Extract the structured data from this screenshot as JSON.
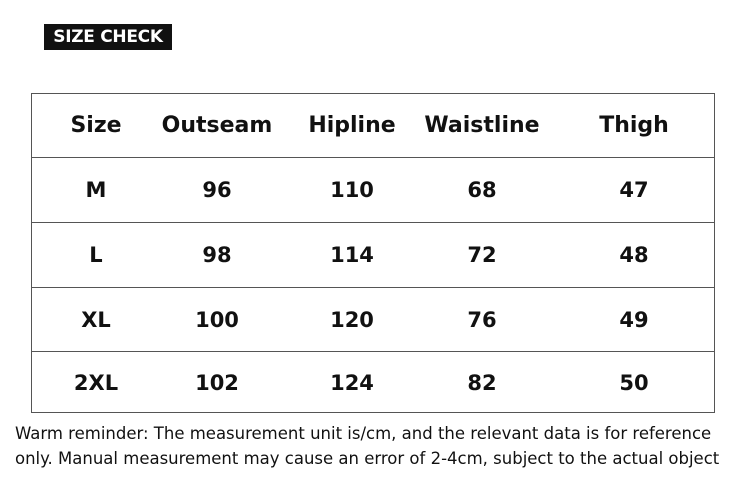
{
  "header": {
    "title": "SIZE CHECK"
  },
  "table": {
    "columns": [
      "Size",
      "Outseam",
      "Hipline",
      "Waistline",
      "Thigh"
    ],
    "rows": [
      [
        "M",
        96,
        110,
        68,
        47
      ],
      [
        "L",
        98,
        114,
        72,
        48
      ],
      [
        "XL",
        100,
        120,
        76,
        49
      ],
      [
        "2XL",
        102,
        124,
        82,
        50
      ]
    ]
  },
  "footnote": {
    "lines": [
      "Warm reminder: The measurement unit is/cm, and the relevant data is for reference",
      "only. Manual measurement may cause an error of 2-4cm, subject to the actual object"
    ]
  }
}
